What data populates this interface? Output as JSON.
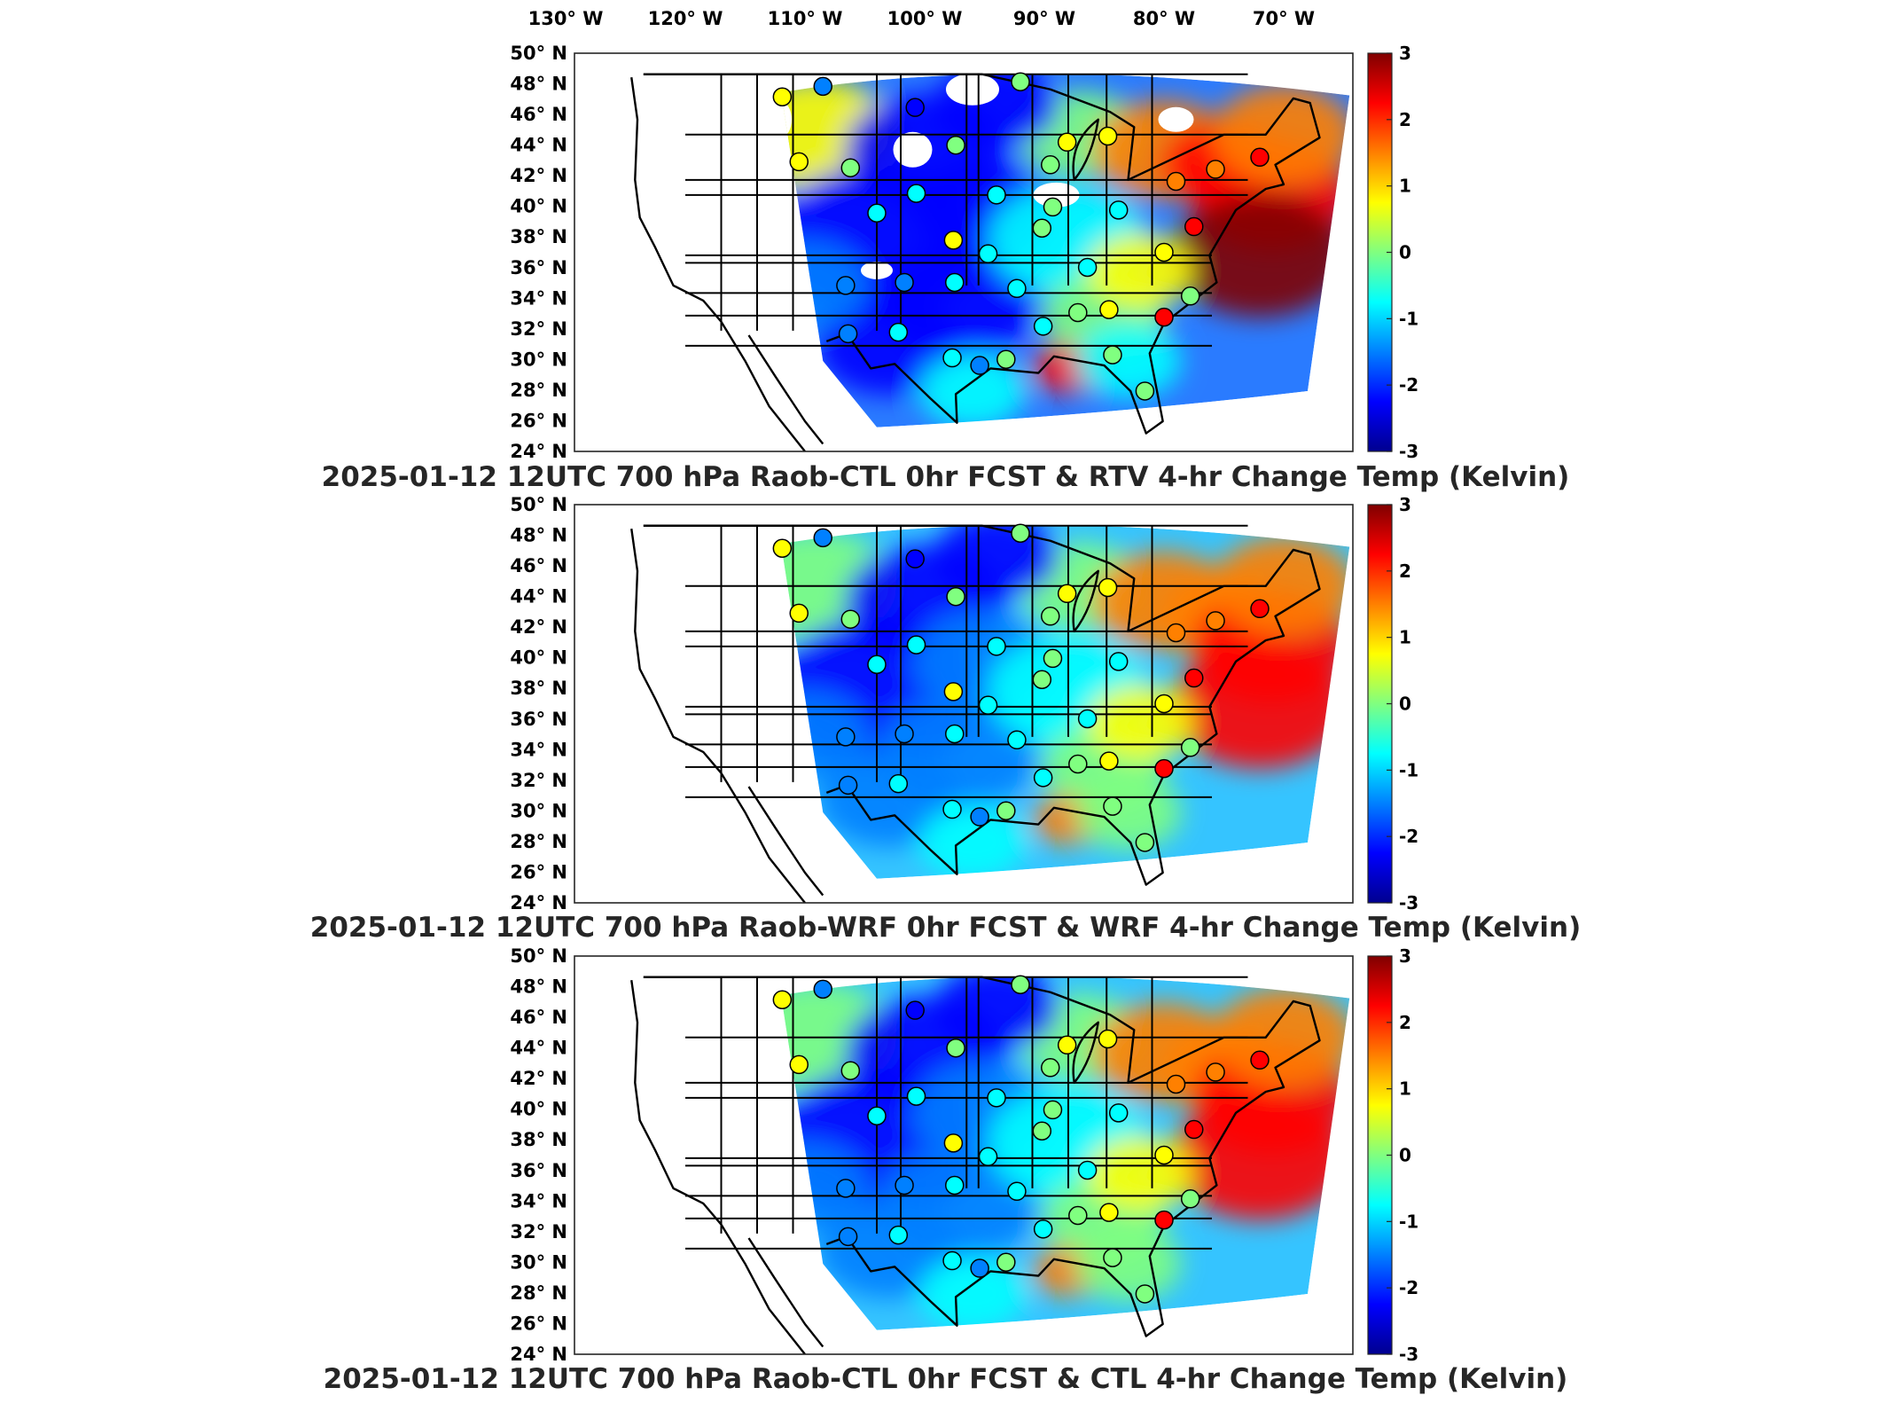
{
  "top_axis": {
    "lon_labels": [
      "130",
      "120",
      "110",
      "100",
      "90",
      "80",
      "70"
    ],
    "lon_suffix": "W"
  },
  "lat_axis": {
    "lat_labels": [
      "50",
      "48",
      "46",
      "44",
      "42",
      "40",
      "38",
      "36",
      "34",
      "32",
      "30",
      "28",
      "26",
      "24"
    ],
    "lat_suffix": "N",
    "degree_symbol": "°"
  },
  "colorbar": {
    "ticks": [
      "3",
      "2",
      "1",
      "0",
      "-1",
      "-2",
      "-3"
    ],
    "range": [
      -3,
      3
    ],
    "colormap": [
      "#00008f",
      "#0000ff",
      "#0080ff",
      "#00ffff",
      "#80ff80",
      "#ffff00",
      "#ff8000",
      "#ff0000",
      "#800000"
    ]
  },
  "panels": [
    {
      "title": "2025-01-12 12UTC 700 hPa Raob-CTL 0hr FCST & RTV 4-hr Change Temp (Kelvin)",
      "style": "rtv"
    },
    {
      "title": "2025-01-12 12UTC 700 hPa Raob-WRF 0hr FCST & WRF 4-hr Change Temp (Kelvin)",
      "style": "wrf"
    },
    {
      "title": "2025-01-12 12UTC 700 hPa Raob-CTL 0hr FCST & CTL 4-hr Change Temp (Kelvin)",
      "style": "ctl"
    }
  ],
  "map_region": {
    "lon_range": [
      -133,
      -65
    ],
    "lat_range": [
      24,
      50
    ],
    "units": "Kelvin",
    "field": "700 hPa temperature difference"
  }
}
